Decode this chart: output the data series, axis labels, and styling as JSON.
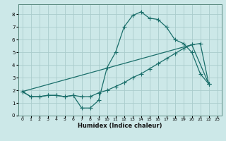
{
  "title": "",
  "xlabel": "Humidex (Indice chaleur)",
  "xlim": [
    -0.5,
    23.5
  ],
  "ylim": [
    0,
    8.8
  ],
  "yticks": [
    0,
    1,
    2,
    3,
    4,
    5,
    6,
    7,
    8
  ],
  "xticks": [
    0,
    1,
    2,
    3,
    4,
    5,
    6,
    7,
    8,
    9,
    10,
    11,
    12,
    13,
    14,
    15,
    16,
    17,
    18,
    19,
    20,
    21,
    22,
    23
  ],
  "bg_color": "#cce8e8",
  "line_color": "#1a6e6a",
  "grid_color": "#aacccc",
  "line1_x": [
    0,
    1,
    2,
    3,
    4,
    5,
    6,
    7,
    8,
    9,
    10,
    11,
    12,
    13,
    14,
    15,
    16,
    17,
    18,
    19,
    20,
    21,
    22
  ],
  "line1_y": [
    1.9,
    1.5,
    1.5,
    1.6,
    1.6,
    1.5,
    1.6,
    0.6,
    0.6,
    1.2,
    3.8,
    5.0,
    7.0,
    7.9,
    8.2,
    7.7,
    7.6,
    7.0,
    6.0,
    5.7,
    5.0,
    3.3,
    2.5
  ],
  "line2_x": [
    0,
    1,
    2,
    3,
    4,
    5,
    6,
    7,
    8,
    9,
    10,
    11,
    12,
    13,
    14,
    15,
    16,
    17,
    18,
    19,
    20,
    21,
    22
  ],
  "line2_y": [
    1.9,
    1.5,
    1.5,
    1.6,
    1.6,
    1.5,
    1.6,
    1.5,
    1.5,
    1.8,
    2.0,
    2.3,
    2.6,
    3.0,
    3.3,
    3.7,
    4.1,
    4.5,
    4.9,
    5.3,
    5.6,
    5.7,
    2.5
  ],
  "line3_x": [
    0,
    20,
    22
  ],
  "line3_y": [
    1.9,
    5.6,
    2.5
  ]
}
